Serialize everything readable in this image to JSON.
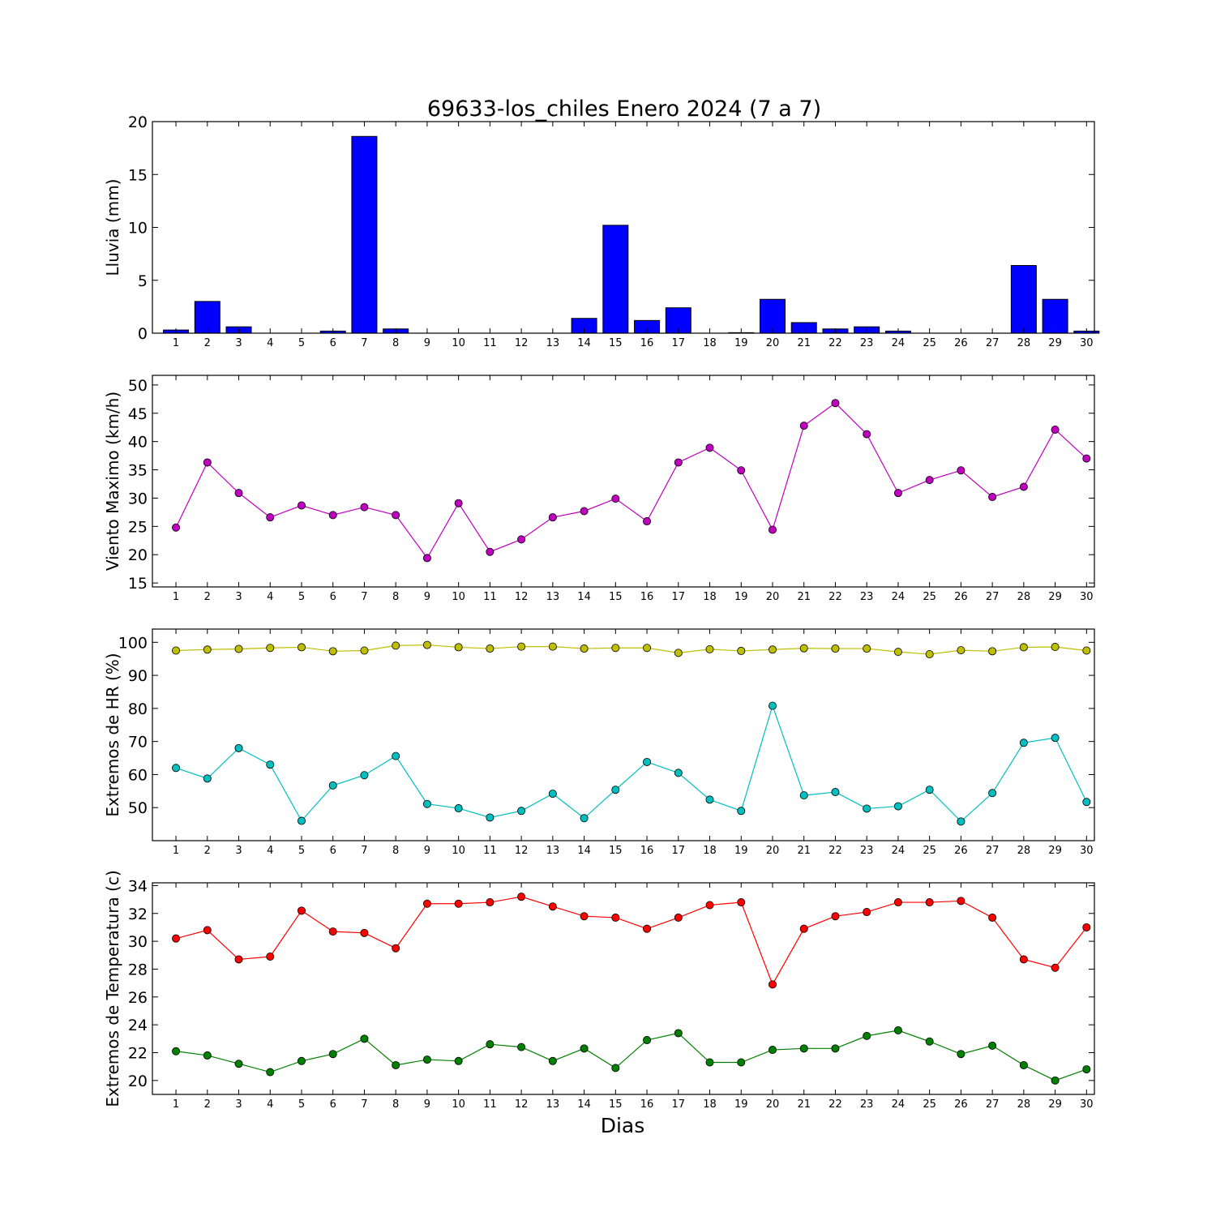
{
  "chart_data": {
    "title": "69633-los_chiles Enero 2024  (7 a 7)",
    "xlabel": "Dias",
    "categories": [
      "1",
      "2",
      "3",
      "4",
      "5",
      "6",
      "7",
      "8",
      "9",
      "10",
      "11",
      "12",
      "13",
      "14",
      "15",
      "16",
      "17",
      "18",
      "19",
      "20",
      "21",
      "22",
      "23",
      "24",
      "25",
      "26",
      "27",
      "28",
      "29",
      "30"
    ],
    "panels": [
      {
        "type": "bar",
        "ylabel": "Lluvia (mm)",
        "ylim": [
          0,
          20
        ],
        "yticks": [
          0,
          5,
          10,
          15,
          20
        ],
        "grid": false,
        "series": [
          {
            "color": "#0000ff",
            "values": [
              0.3,
              3.0,
              0.6,
              0,
              0,
              0.2,
              18.6,
              0.4,
              0,
              0,
              0,
              0,
              0,
              1.4,
              10.2,
              1.2,
              2.4,
              0,
              0.05,
              3.2,
              1.0,
              0.4,
              0.6,
              0.2,
              0,
              0,
              0,
              6.4,
              3.2,
              0.2
            ]
          }
        ]
      },
      {
        "type": "line",
        "ylabel": "Viento Maximo (km/h)",
        "ylim": [
          14.3,
          51.7
        ],
        "yticks": [
          15,
          20,
          25,
          30,
          35,
          40,
          45,
          50
        ],
        "grid": false,
        "series": [
          {
            "color": "#bf00bf",
            "values": [
              24.8,
              36.3,
              30.9,
              26.6,
              28.7,
              27.0,
              28.4,
              27.0,
              19.4,
              29.1,
              20.5,
              22.7,
              26.6,
              27.7,
              29.9,
              25.9,
              36.3,
              38.9,
              34.9,
              24.4,
              42.8,
              46.8,
              41.3,
              30.9,
              33.2,
              34.9,
              30.2,
              32.0,
              42.1,
              37.0
            ]
          }
        ]
      },
      {
        "type": "line",
        "ylabel": "Extremos de HR (%)",
        "ylim": [
          40,
          104
        ],
        "yticks": [
          50,
          60,
          70,
          80,
          90,
          100
        ],
        "grid": false,
        "series": [
          {
            "color": "#bfbf00",
            "values": [
              97.5,
              97.8,
              98.0,
              98.3,
              98.5,
              97.3,
              97.5,
              99.0,
              99.2,
              98.5,
              98.1,
              98.7,
              98.7,
              98.1,
              98.3,
              98.3,
              96.8,
              97.9,
              97.4,
              97.8,
              98.2,
              98.1,
              98.1,
              97.1,
              96.4,
              97.6,
              97.3,
              98.5,
              98.6,
              97.5
            ]
          },
          {
            "color": "#00bfbf",
            "values": [
              62.0,
              58.8,
              68.0,
              63.0,
              46.0,
              56.7,
              59.8,
              65.6,
              51.1,
              49.8,
              47.0,
              49.0,
              54.2,
              46.8,
              55.4,
              63.8,
              60.5,
              52.4,
              49.0,
              80.8,
              53.7,
              54.7,
              49.7,
              50.4,
              55.4,
              45.8,
              54.4,
              69.6,
              71.1,
              51.7
            ]
          }
        ]
      },
      {
        "type": "line",
        "ylabel": "Extremos de Temperatura (c)",
        "ylim": [
          19,
          34.2
        ],
        "yticks": [
          20,
          22,
          24,
          26,
          28,
          30,
          32,
          34
        ],
        "grid": false,
        "series": [
          {
            "color": "#ff0000",
            "values": [
              30.2,
              30.8,
              28.7,
              28.9,
              32.2,
              30.7,
              30.6,
              29.5,
              32.7,
              32.7,
              32.8,
              33.2,
              32.5,
              31.8,
              31.7,
              30.9,
              31.7,
              32.6,
              32.8,
              26.9,
              30.9,
              31.8,
              32.1,
              32.8,
              32.8,
              32.9,
              31.7,
              28.7,
              28.1,
              31.0
            ]
          },
          {
            "color": "#008000",
            "values": [
              22.1,
              21.8,
              21.2,
              20.6,
              21.4,
              21.9,
              23.0,
              21.1,
              21.5,
              21.4,
              22.6,
              22.4,
              21.4,
              22.3,
              20.9,
              22.9,
              23.4,
              21.3,
              21.3,
              22.2,
              22.3,
              22.3,
              23.2,
              23.6,
              22.8,
              21.9,
              22.5,
              21.1,
              20.0,
              20.8
            ]
          }
        ]
      }
    ]
  }
}
